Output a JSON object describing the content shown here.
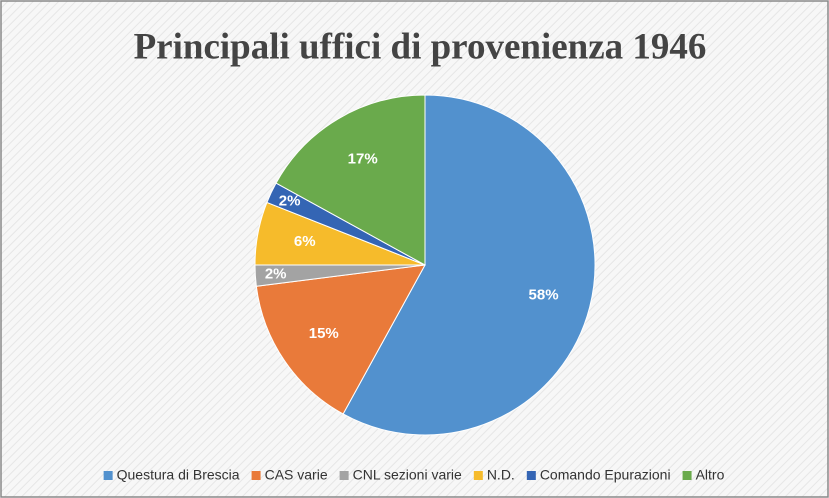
{
  "chart_data": {
    "type": "pie",
    "title": "Principali uffici di provenienza 1946",
    "categories": [
      "Questura di Brescia",
      "CAS varie",
      "CNL sezioni varie",
      "N.D.",
      "Comando Epurazioni",
      "Altro"
    ],
    "values": [
      58,
      15,
      2,
      6,
      2,
      17
    ],
    "value_labels": [
      "58%",
      "15%",
      "2%",
      "6%",
      "2%",
      "17%"
    ],
    "colors": [
      "#5291ce",
      "#e97a3a",
      "#a3a3a3",
      "#f6bb2b",
      "#3465b4",
      "#6aaa4c"
    ],
    "legend": "bottom"
  }
}
